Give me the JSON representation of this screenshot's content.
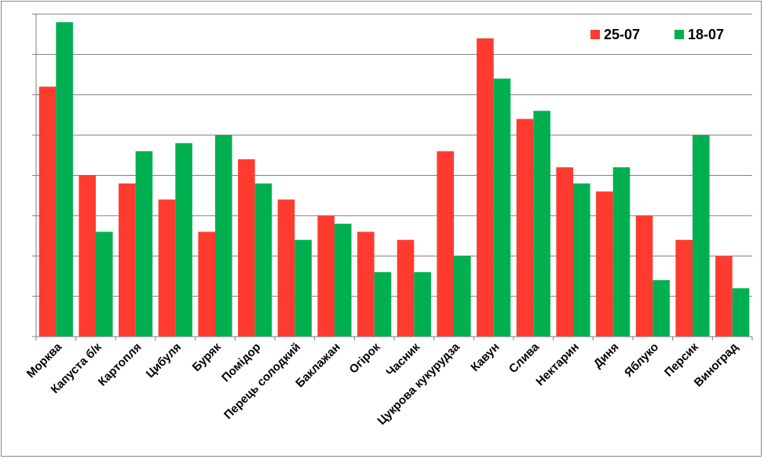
{
  "chart_data": {
    "type": "bar",
    "title": "",
    "xlabel": "",
    "ylabel": "",
    "ylim": [
      0,
      80
    ],
    "grid": true,
    "y_tick_labels_shown": false,
    "legend_position": "top-right",
    "categories": [
      "Морква",
      "Капуста б/к",
      "Картопля",
      "Цибуля",
      "Буряк",
      "Помідор",
      "Перець солодкий",
      "Баклажан",
      "Огірок",
      "Часник",
      "Цукрова кукурудза",
      "Кавун",
      "Слива",
      "Нектарин",
      "Диня",
      "Яблуко",
      "Персик",
      "Виноград"
    ],
    "series": [
      {
        "name": "25-07",
        "color": "#ff3b30",
        "values": [
          62,
          40,
          38,
          34,
          26,
          44,
          34,
          30,
          26,
          24,
          46,
          74,
          54,
          42,
          36,
          30,
          24,
          20
        ]
      },
      {
        "name": "18-07",
        "color": "#00b050",
        "values": [
          78,
          26,
          46,
          48,
          50,
          38,
          24,
          28,
          16,
          16,
          20,
          64,
          56,
          38,
          42,
          14,
          50,
          12
        ]
      }
    ]
  }
}
